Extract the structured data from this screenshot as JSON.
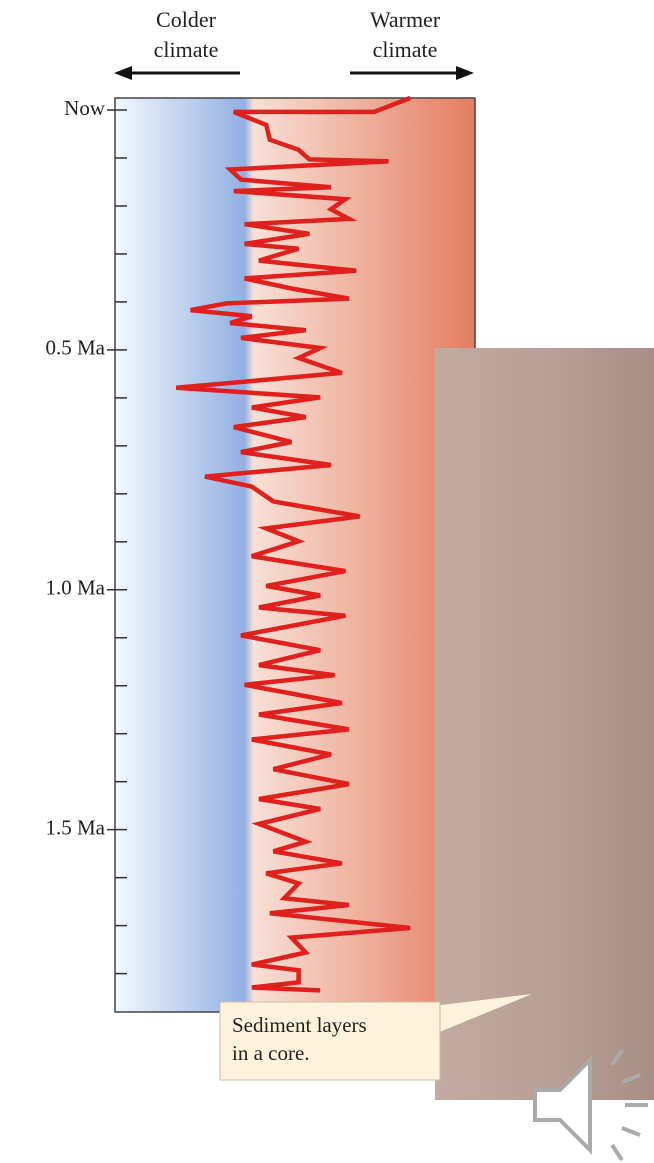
{
  "chart_data": {
    "type": "line",
    "orientation": "vertical",
    "colder_label": [
      "Colder",
      "climate"
    ],
    "warmer_label": [
      "Warmer",
      "climate"
    ],
    "callout": [
      "Sediment layers",
      "in a core."
    ],
    "xlim": [
      0,
      100
    ],
    "ylim": [
      -0.025,
      1.88
    ],
    "yticks": [
      {
        "value": 0,
        "label": "Now"
      },
      {
        "value": 0.5,
        "label": "0.5 Ma"
      },
      {
        "value": 1.0,
        "label": "1.0 Ma"
      },
      {
        "value": 1.5,
        "label": "1.5 Ma"
      }
    ],
    "yminor": [
      0.1,
      0.2,
      0.3,
      0.4,
      0.6,
      0.7,
      0.8,
      0.9,
      1.1,
      1.2,
      1.3,
      1.4,
      1.6,
      1.7,
      1.8
    ],
    "y": [
      -0.025,
      0.004,
      0.004,
      0.031,
      0.062,
      0.083,
      0.103,
      0.107,
      0.124,
      0.145,
      0.161,
      0.169,
      0.186,
      0.207,
      0.227,
      0.238,
      0.258,
      0.279,
      0.289,
      0.314,
      0.335,
      0.351,
      0.372,
      0.393,
      0.403,
      0.417,
      0.43,
      0.444,
      0.459,
      0.475,
      0.496,
      0.517,
      0.548,
      0.579,
      0.599,
      0.62,
      0.64,
      0.661,
      0.692,
      0.713,
      0.74,
      0.764,
      0.785,
      0.816,
      0.847,
      0.872,
      0.899,
      0.93,
      0.961,
      0.992,
      1.012,
      1.037,
      1.054,
      1.095,
      1.126,
      1.157,
      1.178,
      1.198,
      1.236,
      1.26,
      1.291,
      1.312,
      1.343,
      1.374,
      1.405,
      1.436,
      1.457,
      1.488,
      1.525,
      1.545,
      1.57,
      1.591,
      1.612,
      1.643,
      1.657,
      1.674,
      1.705,
      1.725,
      1.756,
      1.781,
      1.793,
      1.818,
      1.829,
      1.835
    ],
    "series": [
      {
        "color": "#e0201c",
        "values": [
          82,
          72,
          33,
          42,
          43,
          51,
          54,
          76,
          32,
          35,
          60,
          33,
          64,
          60,
          65,
          36,
          54,
          36,
          51,
          40,
          67,
          36,
          49,
          65,
          31,
          21,
          38,
          32,
          53,
          35,
          57,
          51,
          63,
          17,
          57,
          38,
          53,
          33,
          49,
          35,
          60,
          25,
          38,
          44,
          68,
          42,
          51,
          38,
          64,
          42,
          57,
          40,
          64,
          35,
          57,
          40,
          61,
          36,
          63,
          40,
          65,
          38,
          60,
          44,
          65,
          40,
          57,
          40,
          53,
          44,
          63,
          42,
          51,
          47,
          65,
          43,
          82,
          49,
          53,
          38,
          51,
          51,
          38,
          57
        ]
      }
    ]
  }
}
